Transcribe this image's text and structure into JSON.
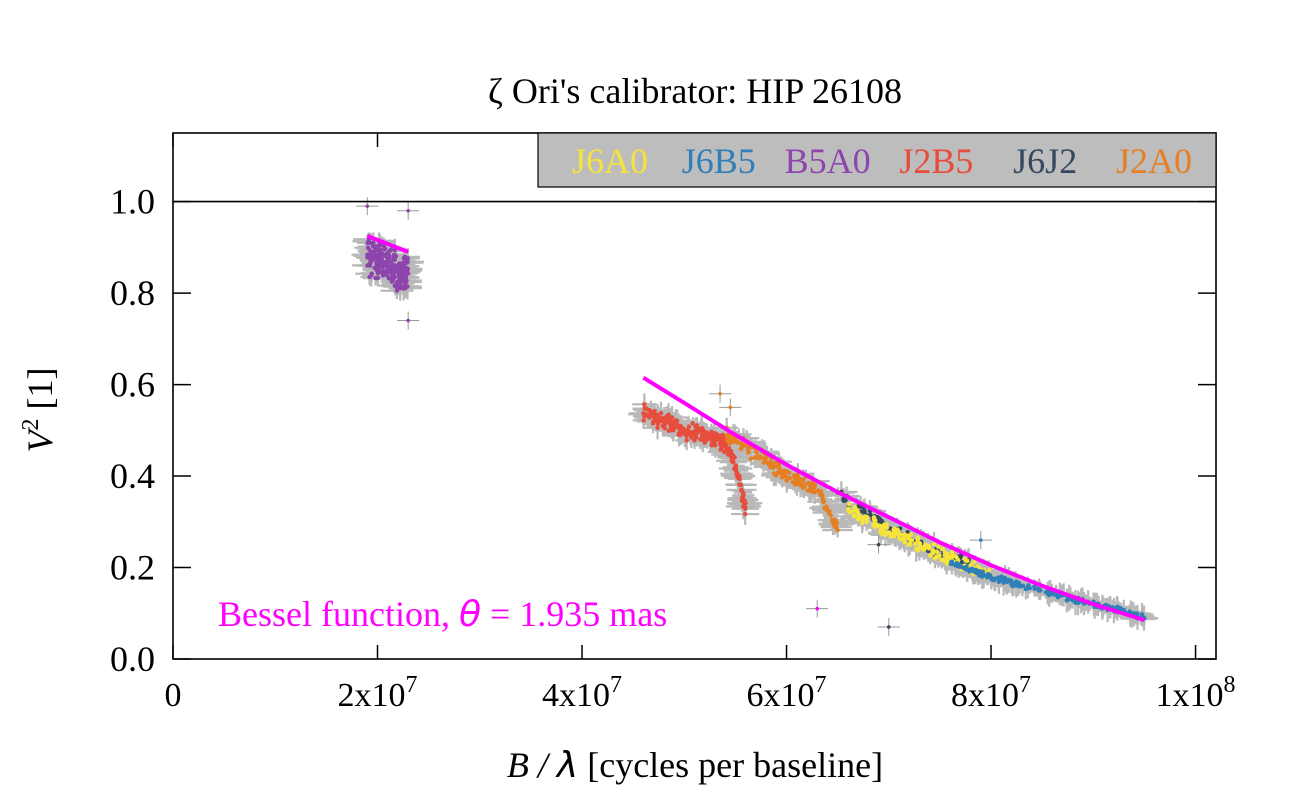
{
  "chart_data": {
    "type": "scatter",
    "title": "ζ Ori's calibrator: HIP 26108",
    "xlabel": "B / λ [cycles per baseline]",
    "ylabel": "V² [1]",
    "xlim": [
      0,
      102000000
    ],
    "ylim": [
      0,
      1.15
    ],
    "x_ticks": [
      {
        "value": 0,
        "label": "0"
      },
      {
        "value": 20000000,
        "label": "2x10⁷"
      },
      {
        "value": 40000000,
        "label": "4x10⁷"
      },
      {
        "value": 60000000,
        "label": "6x10⁷"
      },
      {
        "value": 80000000,
        "label": "8x10⁷"
      },
      {
        "value": 100000000,
        "label": "1x10⁸"
      }
    ],
    "y_ticks": [
      {
        "value": 0.0,
        "label": "0.0"
      },
      {
        "value": 0.2,
        "label": "0.2"
      },
      {
        "value": 0.4,
        "label": "0.4"
      },
      {
        "value": 0.6,
        "label": "0.6"
      },
      {
        "value": 0.8,
        "label": "0.8"
      },
      {
        "value": 1.0,
        "label": "1.0"
      }
    ],
    "reference_line": {
      "y": 1.0,
      "color": "#000000"
    },
    "error_bar_color": "#b9b9b9",
    "legend": {
      "placement": "top-right",
      "background": "#bdbdbd",
      "entries": [
        {
          "name": "J6A0",
          "color": "#f7e43a"
        },
        {
          "name": "J6B5",
          "color": "#2f7fb8"
        },
        {
          "name": "B5A0",
          "color": "#8e44ad"
        },
        {
          "name": "J2B5",
          "color": "#e74c3c"
        },
        {
          "name": "J6J2",
          "color": "#34495e"
        },
        {
          "name": "J2A0",
          "color": "#e67e22"
        }
      ]
    },
    "series": [
      {
        "name": "B5A0",
        "color": "#8e44ad",
        "segments": [
          {
            "x": [
              19000000,
              20000000,
              21000000,
              22000000,
              23000000
            ],
            "y": [
              0.88,
              0.87,
              0.86,
              0.85,
              0.84
            ],
            "spread": 0.05,
            "density": 60
          }
        ]
      },
      {
        "name": "J2B5",
        "color": "#e74c3c",
        "segments": [
          {
            "x": [
              46000000,
              48000000,
              50000000,
              52000000,
              54000000
            ],
            "y": [
              0.54,
              0.52,
              0.5,
              0.49,
              0.47
            ],
            "spread": 0.022,
            "density": 45
          },
          {
            "x": [
              54000000,
              55000000,
              56000000
            ],
            "y": [
              0.47,
              0.42,
              0.33
            ],
            "spread": 0.02,
            "density": 30
          }
        ]
      },
      {
        "name": "J2A0",
        "color": "#e67e22",
        "segments": [
          {
            "x": [
              54000000,
              57000000,
              60000000,
              63000000
            ],
            "y": [
              0.49,
              0.45,
              0.4,
              0.37
            ],
            "spread": 0.02,
            "density": 40
          },
          {
            "x": [
              63000000,
              64000000,
              65000000
            ],
            "y": [
              0.37,
              0.33,
              0.29
            ],
            "spread": 0.015,
            "density": 18
          }
        ]
      },
      {
        "name": "J6J2",
        "color": "#34495e",
        "segments": [
          {
            "x": [
              65000000,
              67000000,
              70000000,
              74000000,
              78000000
            ],
            "y": [
              0.36,
              0.33,
              0.29,
              0.24,
              0.21
            ],
            "spread": 0.012,
            "density": 22
          }
        ]
      },
      {
        "name": "J6A0",
        "color": "#f7e43a",
        "segments": [
          {
            "x": [
              66000000,
              70000000,
              74000000,
              78000000,
              80000000
            ],
            "y": [
              0.33,
              0.28,
              0.24,
              0.2,
              0.18
            ],
            "spread": 0.018,
            "density": 45
          }
        ]
      },
      {
        "name": "J6B5",
        "color": "#2f7fb8",
        "segments": [
          {
            "x": [
              76000000,
              80000000,
              84000000,
              88000000,
              92000000,
              95000000
            ],
            "y": [
              0.21,
              0.18,
              0.155,
              0.13,
              0.11,
              0.09
            ],
            "spread": 0.008,
            "density": 40
          }
        ]
      }
    ],
    "outliers": [
      {
        "x": 19000000,
        "y": 0.99,
        "color": "#8e44ad"
      },
      {
        "x": 23000000,
        "y": 0.98,
        "color": "#8e44ad"
      },
      {
        "x": 23000000,
        "y": 0.74,
        "color": "#8e44ad"
      },
      {
        "x": 53500000,
        "y": 0.58,
        "color": "#e67e22"
      },
      {
        "x": 54500000,
        "y": 0.55,
        "color": "#e67e22"
      },
      {
        "x": 69000000,
        "y": 0.25,
        "color": "#34495e"
      },
      {
        "x": 70000000,
        "y": 0.07,
        "color": "#34495e"
      },
      {
        "x": 79000000,
        "y": 0.26,
        "color": "#2f7fb8"
      },
      {
        "x": 63000000,
        "y": 0.11,
        "color": "#ff00ff"
      }
    ],
    "fits": [
      {
        "color": "#ff00ff",
        "x": [
          19000000,
          23000000
        ],
        "y": [
          0.925,
          0.89
        ]
      },
      {
        "color": "#ff00ff",
        "x": [
          46000000,
          50000000,
          55000000,
          60000000,
          65000000,
          70000000,
          75000000,
          80000000,
          85000000,
          90000000,
          95000000
        ],
        "y": [
          0.615,
          0.56,
          0.49,
          0.425,
          0.365,
          0.31,
          0.255,
          0.205,
          0.16,
          0.12,
          0.085
        ]
      }
    ],
    "annotation": {
      "text_prefix": "Bessel function, ",
      "symbol": "θ",
      "text_suffix": " = 1.935 mas",
      "color": "#ff00ff"
    }
  }
}
